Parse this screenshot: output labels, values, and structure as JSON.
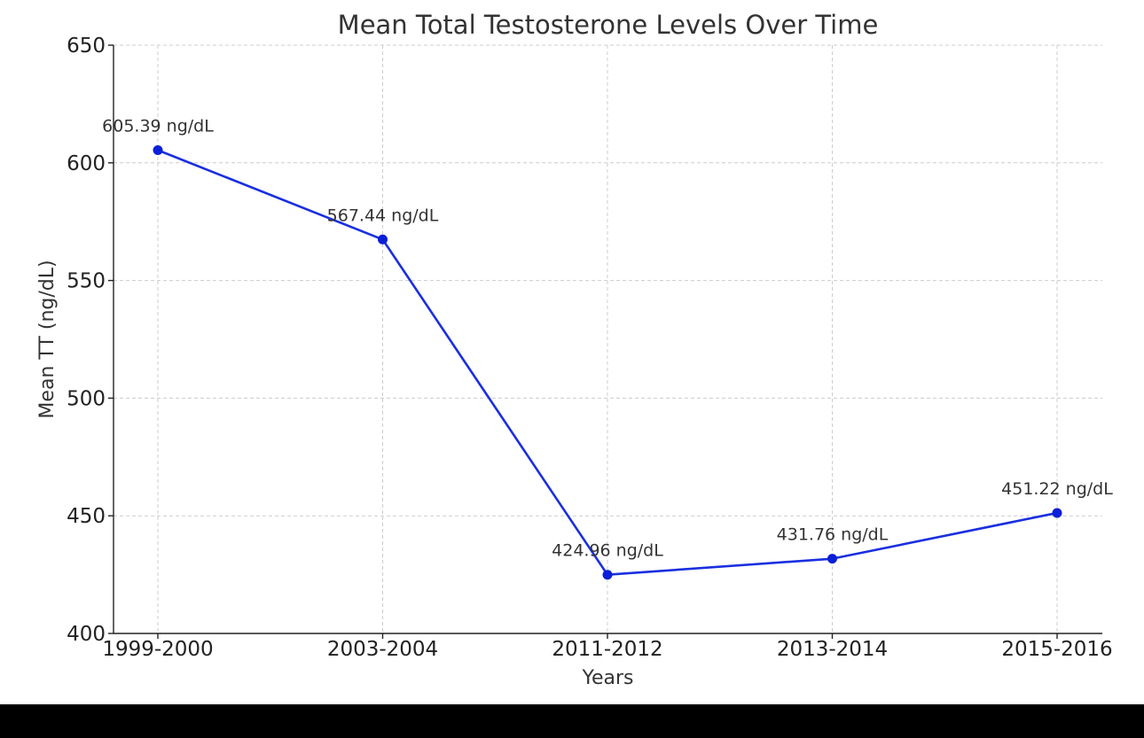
{
  "colors": {
    "line": "#1a2fe0",
    "marker": "#0a1fd8",
    "background": "#ffffff",
    "grid": "#cccccc"
  },
  "chart_data": {
    "type": "line",
    "title": "Mean Total Testosterone Levels Over Time",
    "xlabel": "Years",
    "ylabel": "Mean TT (ng/dL)",
    "categories": [
      "1999-2000",
      "2003-2004",
      "2011-2012",
      "2013-2014",
      "2015-2016"
    ],
    "values": [
      605.39,
      567.44,
      424.96,
      431.76,
      451.22
    ],
    "data_labels": [
      "605.39 ng/dL",
      "567.44 ng/dL",
      "424.96 ng/dL",
      "431.76 ng/dL",
      "451.22 ng/dL"
    ],
    "ylim": [
      400,
      650
    ],
    "yticks": [
      400,
      450,
      500,
      550,
      600,
      650
    ],
    "grid": true,
    "markers": true
  }
}
